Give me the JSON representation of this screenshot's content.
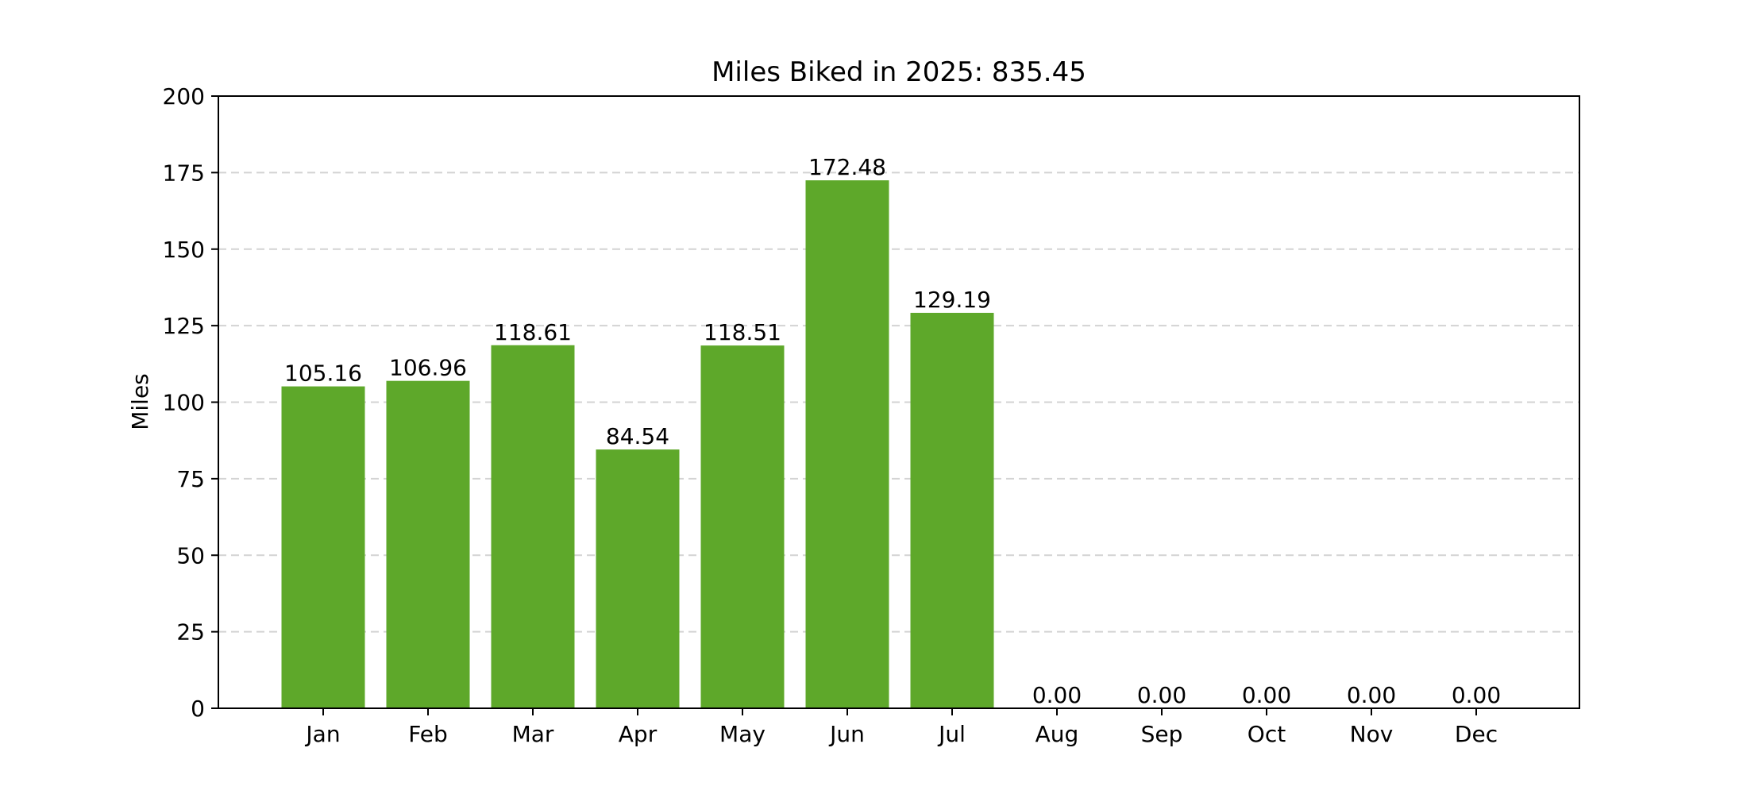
{
  "chart_data": {
    "type": "bar",
    "title": "Miles Biked in 2025: 835.45",
    "xlabel": "",
    "ylabel": "Miles",
    "categories": [
      "Jan",
      "Feb",
      "Mar",
      "Apr",
      "May",
      "Jun",
      "Jul",
      "Aug",
      "Sep",
      "Oct",
      "Nov",
      "Dec"
    ],
    "values": [
      105.16,
      106.96,
      118.61,
      84.54,
      118.51,
      172.48,
      129.19,
      0.0,
      0.0,
      0.0,
      0.0,
      0.0
    ],
    "value_labels": [
      "105.16",
      "106.96",
      "118.61",
      "84.54",
      "118.51",
      "172.48",
      "129.19",
      "0.00",
      "0.00",
      "0.00",
      "0.00",
      "0.00"
    ],
    "ylim": [
      0,
      200
    ],
    "yticks": [
      0,
      25,
      50,
      75,
      100,
      125,
      150,
      175,
      200
    ],
    "grid": "y dashed",
    "bar_color": "#5ea82a",
    "grid_color": "#d3d3d3"
  }
}
